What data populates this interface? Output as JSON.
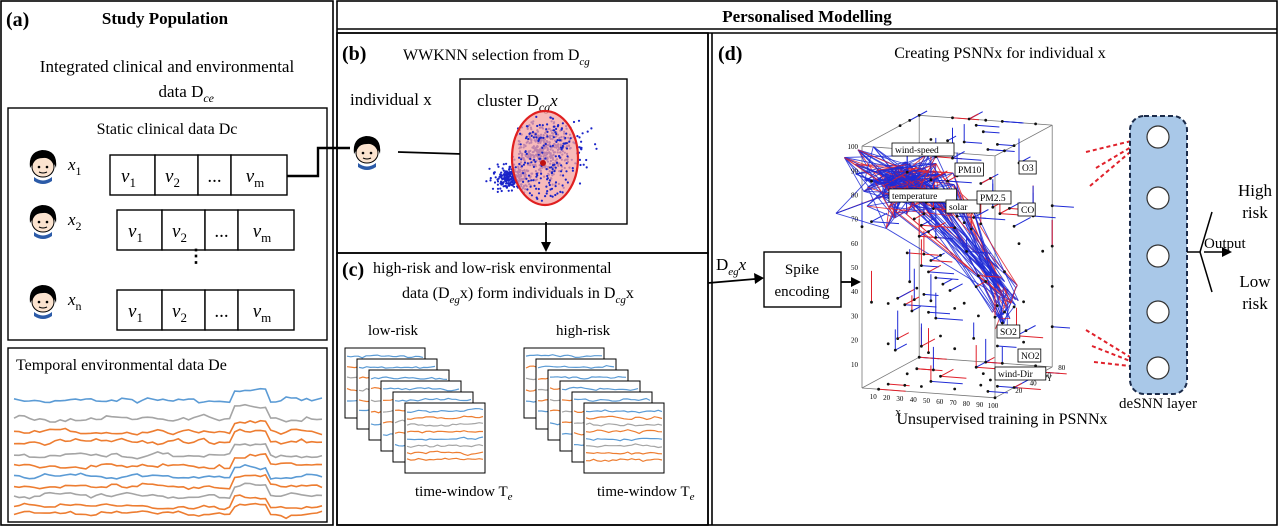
{
  "panel_a": {
    "label": "(a)",
    "title": "Study Population",
    "subtitle_line1": "Integrated clinical and environmental",
    "subtitle_line2": "data D",
    "subtitle_sub": "ce",
    "static_title": "Static clinical data Dc",
    "rows": [
      {
        "name": "x",
        "sub": "1"
      },
      {
        "name": "x",
        "sub": "2"
      },
      {
        "name": "x",
        "sub": "n"
      }
    ],
    "cells": [
      {
        "name": "v",
        "sub": "1"
      },
      {
        "name": "v",
        "sub": "2"
      },
      {
        "name": "...",
        "sub": ""
      },
      {
        "name": "v",
        "sub": "m"
      }
    ],
    "temporal_title": "Temporal environmental data De"
  },
  "header": {
    "title": "Personalised Modelling"
  },
  "panel_b": {
    "label": "(b)",
    "title": "WWKNN selection from D",
    "title_sub": "cg",
    "individual": "individual x",
    "cluster": "cluster D",
    "cluster_sub": "cg",
    "cluster_tail": "x"
  },
  "panel_c": {
    "label": "(c)",
    "line1": "high-risk and low-risk environmental",
    "line2_a": "data (D",
    "line2_sub": "eg",
    "line2_b": "x) form individuals in D",
    "line2_sub2": "cg",
    "line2_c": "x",
    "low_label": "low-risk",
    "high_label": "high-risk",
    "window_label": "time-window T",
    "window_sub": "e"
  },
  "panel_d": {
    "label": "(d)",
    "title": "Creating PSNNx for individual x",
    "input_label": "D",
    "input_sub": "eg",
    "input_tail": "x",
    "spike_line1": "Spike",
    "spike_line2": "encoding",
    "features": [
      "wind-speed",
      "PM10",
      "O3",
      "temperature",
      "solar",
      "PM2.5",
      "CO",
      "SO2",
      "NO2",
      "wind-Dir"
    ],
    "axis_z_ticks": [
      "10",
      "20",
      "30",
      "40",
      "50",
      "60",
      "70",
      "80",
      "90",
      "100"
    ],
    "axis_x_ticks": [
      "10",
      "20",
      "30",
      "40",
      "50",
      "60",
      "70",
      "80",
      "90",
      "100"
    ],
    "axis_y_ticks": [
      "20",
      "40",
      "60",
      "80"
    ],
    "axis_x_label": "X",
    "axis_y_label": "Y",
    "bottom_caption": "Unsupervised training in PSNNx",
    "desnn_label": "deSNN layer",
    "output_label": "Output",
    "high_risk": [
      "High",
      "risk"
    ],
    "low_risk": [
      "Low",
      "risk"
    ]
  },
  "colors": {
    "border": "#000000",
    "network_blue": "#1f2bd6",
    "network_red": "#e0212b",
    "scatter_blue": "#1a24c9",
    "cluster_fill": "#f4a3a3",
    "cluster_edge": "#e02020",
    "desnn_fill": "#a9c8e8",
    "series_blue": "#5b9bd5",
    "series_orange": "#ed7d31",
    "series_gray": "#a5a5a5"
  }
}
